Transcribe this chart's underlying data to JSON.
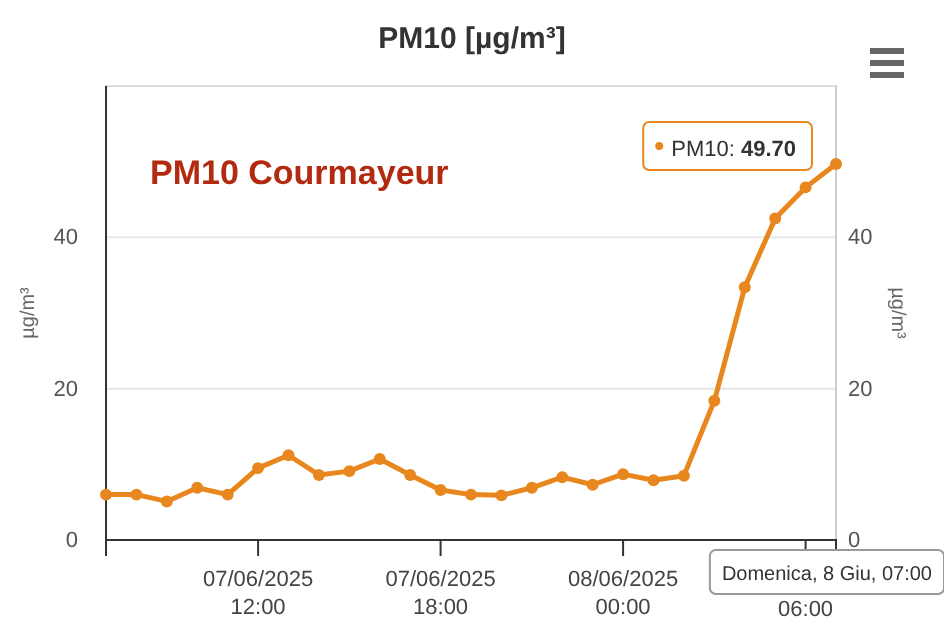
{
  "chart_data": {
    "type": "line",
    "title": "PM10 [µg/m³]",
    "ylabel": "µg/m³",
    "y2label": "µg/m³",
    "x": [
      "2025-06-07T07:00",
      "2025-06-07T08:00",
      "2025-06-07T09:00",
      "2025-06-07T10:00",
      "2025-06-07T11:00",
      "2025-06-07T12:00",
      "2025-06-07T13:00",
      "2025-06-07T14:00",
      "2025-06-07T15:00",
      "2025-06-07T16:00",
      "2025-06-07T17:00",
      "2025-06-07T18:00",
      "2025-06-07T19:00",
      "2025-06-07T20:00",
      "2025-06-07T21:00",
      "2025-06-07T22:00",
      "2025-06-07T23:00",
      "2025-06-08T00:00",
      "2025-06-08T01:00",
      "2025-06-08T02:00",
      "2025-06-08T03:00",
      "2025-06-08T04:00",
      "2025-06-08T05:00",
      "2025-06-08T06:00",
      "2025-06-08T07:00"
    ],
    "series": [
      {
        "color": "#e8871e",
        "values": [
          6.0,
          6.0,
          5.1,
          6.9,
          6.0,
          9.5,
          11.2,
          8.6,
          9.1,
          10.7,
          8.6,
          6.6,
          6.0,
          5.9,
          6.9,
          8.3,
          7.3,
          8.7,
          7.9,
          8.5,
          18.4,
          33.4,
          42.5,
          46.6,
          49.7
        ]
      }
    ],
    "xlim": [
      "2025-06-07T07:00",
      "2025-06-08T07:00"
    ],
    "xticks": [
      {
        "value": "2025-06-07T12:00",
        "label": "07/06/2025\n12:00"
      },
      {
        "value": "2025-06-07T18:00",
        "label": "07/06/2025\n18:00"
      },
      {
        "value": "2025-06-08T00:00",
        "label": "08/06/2025\n00:00"
      },
      {
        "value": "2025-06-08T06:00",
        "label": "06:00"
      }
    ],
    "ylim": [
      0,
      60
    ],
    "yticks": [
      0,
      20,
      40
    ],
    "y2lim": [
      0,
      60
    ],
    "y2ticks": [
      0,
      20,
      40
    ],
    "grid": "y",
    "marker": "circle",
    "line_style": "solid",
    "annotations": [
      "PM10 Courmayeur",
      {
        "text": "PM10: 49.70",
        "x": "2025-06-08T07:00",
        "y": 49.7
      },
      "Domenica, 8 Giu, 07:00"
    ]
  }
}
